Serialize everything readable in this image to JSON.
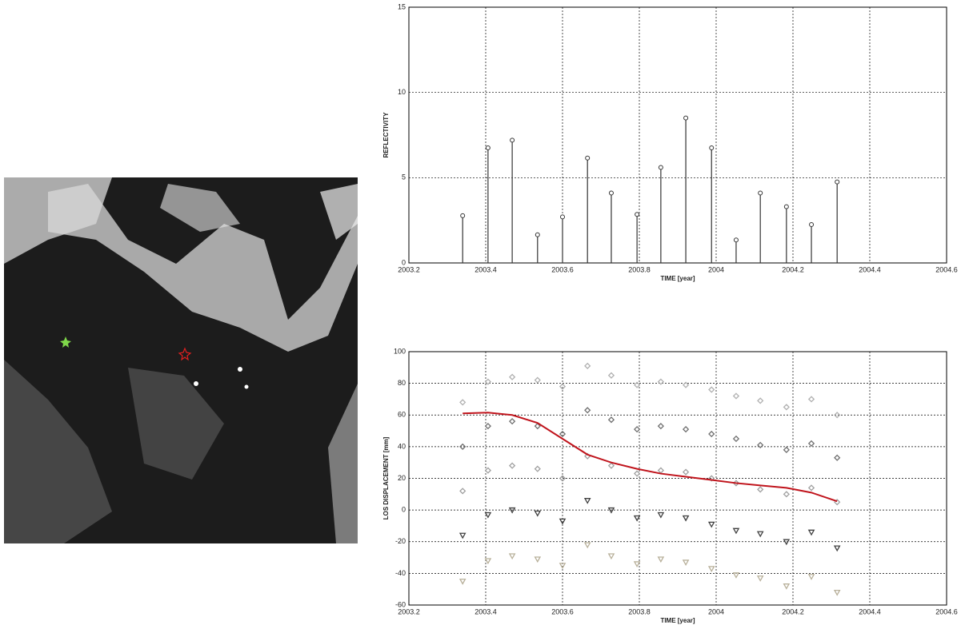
{
  "chart_data": [
    {
      "type": "stem",
      "color": "#333333",
      "grid": true,
      "x_label": "TIME [year]",
      "y_label": "REFLECTIVITY",
      "xlim": [
        2003.2,
        2004.6
      ],
      "xticks": [
        2003.2,
        2003.4,
        2003.6,
        2003.8,
        2004,
        2004.2,
        2004.4,
        2004.6
      ],
      "ylim": [
        0,
        15
      ],
      "yticks": [
        0,
        5,
        10,
        15
      ],
      "x": [
        2003.34,
        2003.406,
        2003.469,
        2003.535,
        2003.6,
        2003.665,
        2003.727,
        2003.794,
        2003.856,
        2003.921,
        2003.988,
        2004.052,
        2004.115,
        2004.183,
        2004.248,
        2004.315
      ],
      "values": [
        2.77,
        6.75,
        7.2,
        1.65,
        2.7,
        6.15,
        4.1,
        2.85,
        5.6,
        8.5,
        6.75,
        1.35,
        4.1,
        3.3,
        2.25,
        4.75
      ]
    },
    {
      "type": "scatter",
      "grid": true,
      "x_label": "TIME [year]",
      "y_label": "LOS DISPLACEMENT [mm]",
      "xlim": [
        2003.2,
        2004.6
      ],
      "xticks": [
        2003.2,
        2003.4,
        2003.6,
        2003.8,
        2004,
        2004.2,
        2004.4,
        2004.6
      ],
      "ylim": [
        -60,
        100
      ],
      "yticks": [
        -60,
        -40,
        -20,
        0,
        20,
        40,
        60,
        80,
        100
      ],
      "x": [
        2003.34,
        2003.406,
        2003.469,
        2003.535,
        2003.6,
        2003.665,
        2003.727,
        2003.794,
        2003.856,
        2003.921,
        2003.988,
        2004.052,
        2004.115,
        2004.183,
        2004.248,
        2004.315
      ],
      "series": [
        {
          "marker": "diamond",
          "color": "#b0b0b0",
          "values": [
            68,
            81,
            84,
            82,
            78,
            91,
            85,
            79,
            81,
            79,
            76,
            72,
            69,
            65,
            70,
            60
          ]
        },
        {
          "marker": "diamond",
          "color": "#707070",
          "values": [
            40,
            53,
            56,
            53,
            48,
            63,
            57,
            51,
            53,
            51,
            48,
            45,
            41,
            38,
            42,
            33
          ]
        },
        {
          "marker": "diamond",
          "color": "#a0a0a0",
          "values": [
            12,
            25,
            28,
            26,
            20,
            34,
            28,
            23,
            25,
            24,
            20,
            17,
            13,
            10,
            14,
            5
          ]
        },
        {
          "marker": "triangle",
          "color": "#404040",
          "values": [
            -16,
            -3,
            0,
            -2,
            -7,
            6,
            0,
            -5,
            -3,
            -5,
            -9,
            -13,
            -15,
            -20,
            -14,
            -24
          ]
        },
        {
          "marker": "triangle",
          "color": "#b8b09a",
          "values": [
            -45,
            -32,
            -29,
            -31,
            -35,
            -22,
            -29,
            -34,
            -31,
            -33,
            -37,
            -41,
            -43,
            -48,
            -42,
            -52
          ]
        },
        {
          "marker": "line",
          "color": "#c0141c",
          "values": [
            61,
            61.5,
            60,
            55,
            45,
            35,
            30,
            26,
            23,
            21,
            19,
            17,
            15.5,
            14,
            11,
            5.5
          ]
        }
      ]
    }
  ]
}
